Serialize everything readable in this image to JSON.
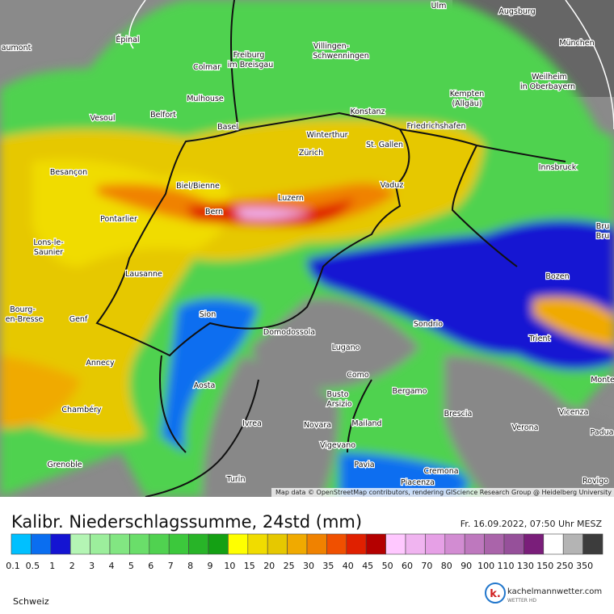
{
  "map": {
    "cities": [
      "Ulm",
      "Augsburg",
      "Épinal",
      "aumont",
      "Villingen-",
      "Schwenningen",
      "Freiburg",
      "im Breisgau",
      "München",
      "Colmar",
      "Weilheim",
      "in Oberbayern",
      "Mulhouse",
      "Kempten",
      "(Allgäu)",
      "Vesoul",
      "Belfort",
      "Konstanz",
      "Basel",
      "Friedrichshafen",
      "Winterthur",
      "St. Gallen",
      "Zürich",
      "Innsbruck",
      "Besançon",
      "Biel/Bienne",
      "Vaduz",
      "Luzern",
      "Bern",
      "Pontarlier",
      "Lons-le-",
      "Saunier",
      "Bru",
      "Bru",
      "Lausanne",
      "Bozen",
      "Bourg-",
      "en-Bresse",
      "Genf",
      "Sion",
      "Sondrio",
      "Domodossola",
      "Trient",
      "Lugano",
      "Annecy",
      "Monte",
      "Como",
      "Aosta",
      "Bergamo",
      "Busto",
      "Arsizio",
      "Chambéry",
      "Brescia",
      "Vicenza",
      "Ivrea",
      "Novara",
      "Mailand",
      "Verona",
      "Padua",
      "Vigevano",
      "Grenoble",
      "Pavia",
      "Cremona",
      "Rovigo",
      "Turin",
      "Piacenza"
    ],
    "attribution": "Map data © OpenStreetMap contributors, rendering GIScience Research Group @ Heidelberg University"
  },
  "legend": {
    "title": "Kalibr. Niederschlagssumme, 24std (mm)",
    "timestamp": "Fr. 16.09.2022, 07:50 Uhr MESZ",
    "items": [
      {
        "label": "0.1",
        "color": "#00c0ff"
      },
      {
        "label": "0.5",
        "color": "#0a6ef0"
      },
      {
        "label": "1",
        "color": "#1414d2"
      },
      {
        "label": "2",
        "color": "#b4f5b4"
      },
      {
        "label": "3",
        "color": "#9cee9c"
      },
      {
        "label": "4",
        "color": "#82e682"
      },
      {
        "label": "5",
        "color": "#6ade6a"
      },
      {
        "label": "6",
        "color": "#50d250"
      },
      {
        "label": "7",
        "color": "#3cc83c"
      },
      {
        "label": "8",
        "color": "#28b428"
      },
      {
        "label": "9",
        "color": "#14a014"
      },
      {
        "label": "10",
        "color": "#ffff00"
      },
      {
        "label": "15",
        "color": "#f0dc00"
      },
      {
        "label": "20",
        "color": "#e6c800"
      },
      {
        "label": "25",
        "color": "#f0aa00"
      },
      {
        "label": "30",
        "color": "#f08200"
      },
      {
        "label": "35",
        "color": "#f05000"
      },
      {
        "label": "40",
        "color": "#e02000"
      },
      {
        "label": "45",
        "color": "#b40000"
      },
      {
        "label": "50",
        "color": "#ffc8ff"
      },
      {
        "label": "60",
        "color": "#f0b4f0"
      },
      {
        "label": "70",
        "color": "#e6a0e6"
      },
      {
        "label": "80",
        "color": "#d28cd2"
      },
      {
        "label": "90",
        "color": "#be78be"
      },
      {
        "label": "100",
        "color": "#aa64aa"
      },
      {
        "label": "110",
        "color": "#96509a"
      },
      {
        "label": "130",
        "color": "#7a1e7a"
      },
      {
        "label": "150",
        "color": "#ffffff"
      },
      {
        "label": "250",
        "color": "#b4b4b4"
      },
      {
        "label": "350",
        "color": "#3c3c3c"
      }
    ]
  },
  "region": "Schweiz",
  "logo": {
    "mark": "k.",
    "name": "kachelmannwetter.com",
    "tagline": "WETTER HD"
  }
}
